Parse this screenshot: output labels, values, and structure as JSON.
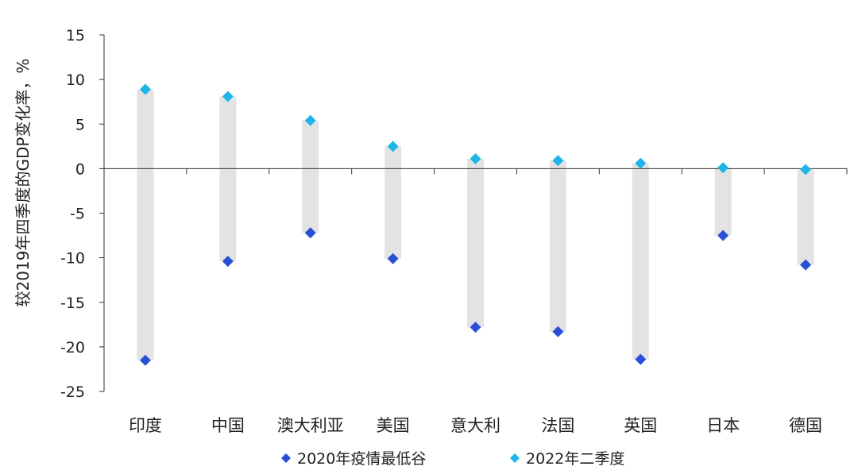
{
  "chart_data": {
    "type": "scatter",
    "title": "",
    "xlabel": "",
    "ylabel": "较2019年四季度的GDP变化率，%",
    "ylim": [
      -25,
      15
    ],
    "yticks": [
      15,
      10,
      5,
      0,
      -5,
      -10,
      -15,
      -20,
      -25
    ],
    "grid": false,
    "legend_position": "bottom",
    "categories": [
      "印度",
      "中国",
      "澳大利亚",
      "美国",
      "意大利",
      "法国",
      "英国",
      "日本",
      "德国"
    ],
    "series": [
      {
        "name": "2020年疫情最低谷",
        "color": "#2a4fd6",
        "marker": "diamond",
        "values": [
          -21.5,
          -10.4,
          -7.2,
          -10.1,
          -17.8,
          -18.3,
          -21.4,
          -7.5,
          -10.8
        ]
      },
      {
        "name": "2022年二季度",
        "color": "#1fb5e8",
        "marker": "diamond",
        "values": [
          8.9,
          8.1,
          5.4,
          2.5,
          1.1,
          0.9,
          0.6,
          0.1,
          -0.1
        ]
      }
    ],
    "range_bar_color": "#e3e3e3"
  }
}
